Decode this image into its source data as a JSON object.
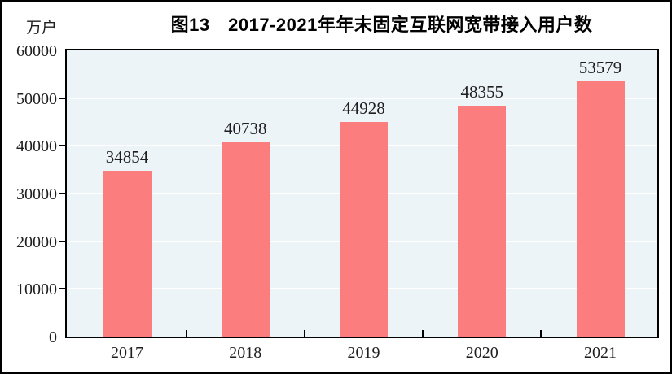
{
  "title": "图13　2017-2021年年末固定互联网宽带接入用户数",
  "chart_data": {
    "type": "bar",
    "title": "图13　2017-2021年年末固定互联网宽带接入用户数",
    "unit_label": "万户",
    "categories": [
      "2017",
      "2018",
      "2019",
      "2020",
      "2021"
    ],
    "values": [
      34854,
      40738,
      44928,
      48355,
      53579
    ],
    "xlabel": "",
    "ylabel": "万户",
    "ylim": [
      0,
      60000
    ],
    "yticks": [
      0,
      10000,
      20000,
      30000,
      40000,
      50000,
      60000
    ],
    "grid": "horizontal",
    "legend_position": "none",
    "colors": {
      "bar": "#FC7D7D",
      "plot_background": "#EDF4F8",
      "gridline": "#FFFFFF",
      "axis": "#000000",
      "text": "#1F1F1F"
    }
  }
}
